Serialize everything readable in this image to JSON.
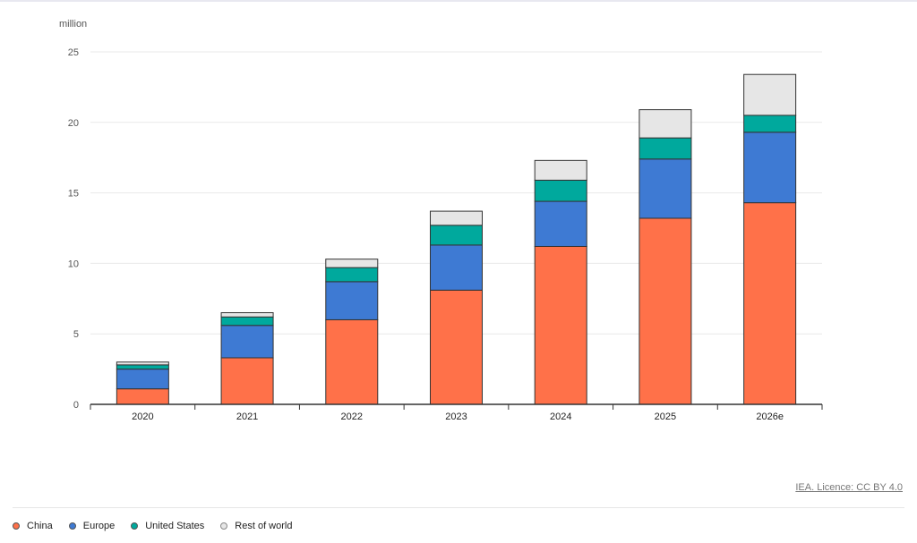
{
  "chart_data": {
    "type": "bar",
    "stacked": true,
    "unit_label": "million",
    "categories": [
      "2020",
      "2021",
      "2022",
      "2023",
      "2024",
      "2025",
      "2026e"
    ],
    "ylim": [
      0,
      25
    ],
    "yticks": [
      0,
      5,
      10,
      15,
      20,
      25
    ],
    "grid": true,
    "legend_position": "bottom-left",
    "series": [
      {
        "name": "China",
        "color": "#ff7149",
        "values": [
          1.1,
          3.3,
          6.0,
          8.1,
          11.2,
          13.2,
          14.3
        ]
      },
      {
        "name": "Europe",
        "color": "#3e7ad3",
        "values": [
          1.4,
          2.3,
          2.7,
          3.2,
          3.2,
          4.2,
          5.0
        ]
      },
      {
        "name": "United States",
        "color": "#00a99d",
        "values": [
          0.3,
          0.6,
          1.0,
          1.4,
          1.5,
          1.5,
          1.2
        ]
      },
      {
        "name": "Rest of world",
        "color": "#e6e6e6",
        "values": [
          0.2,
          0.3,
          0.6,
          1.0,
          1.4,
          2.0,
          2.9
        ]
      }
    ]
  },
  "licence_text": "IEA. Licence: CC BY 4.0"
}
